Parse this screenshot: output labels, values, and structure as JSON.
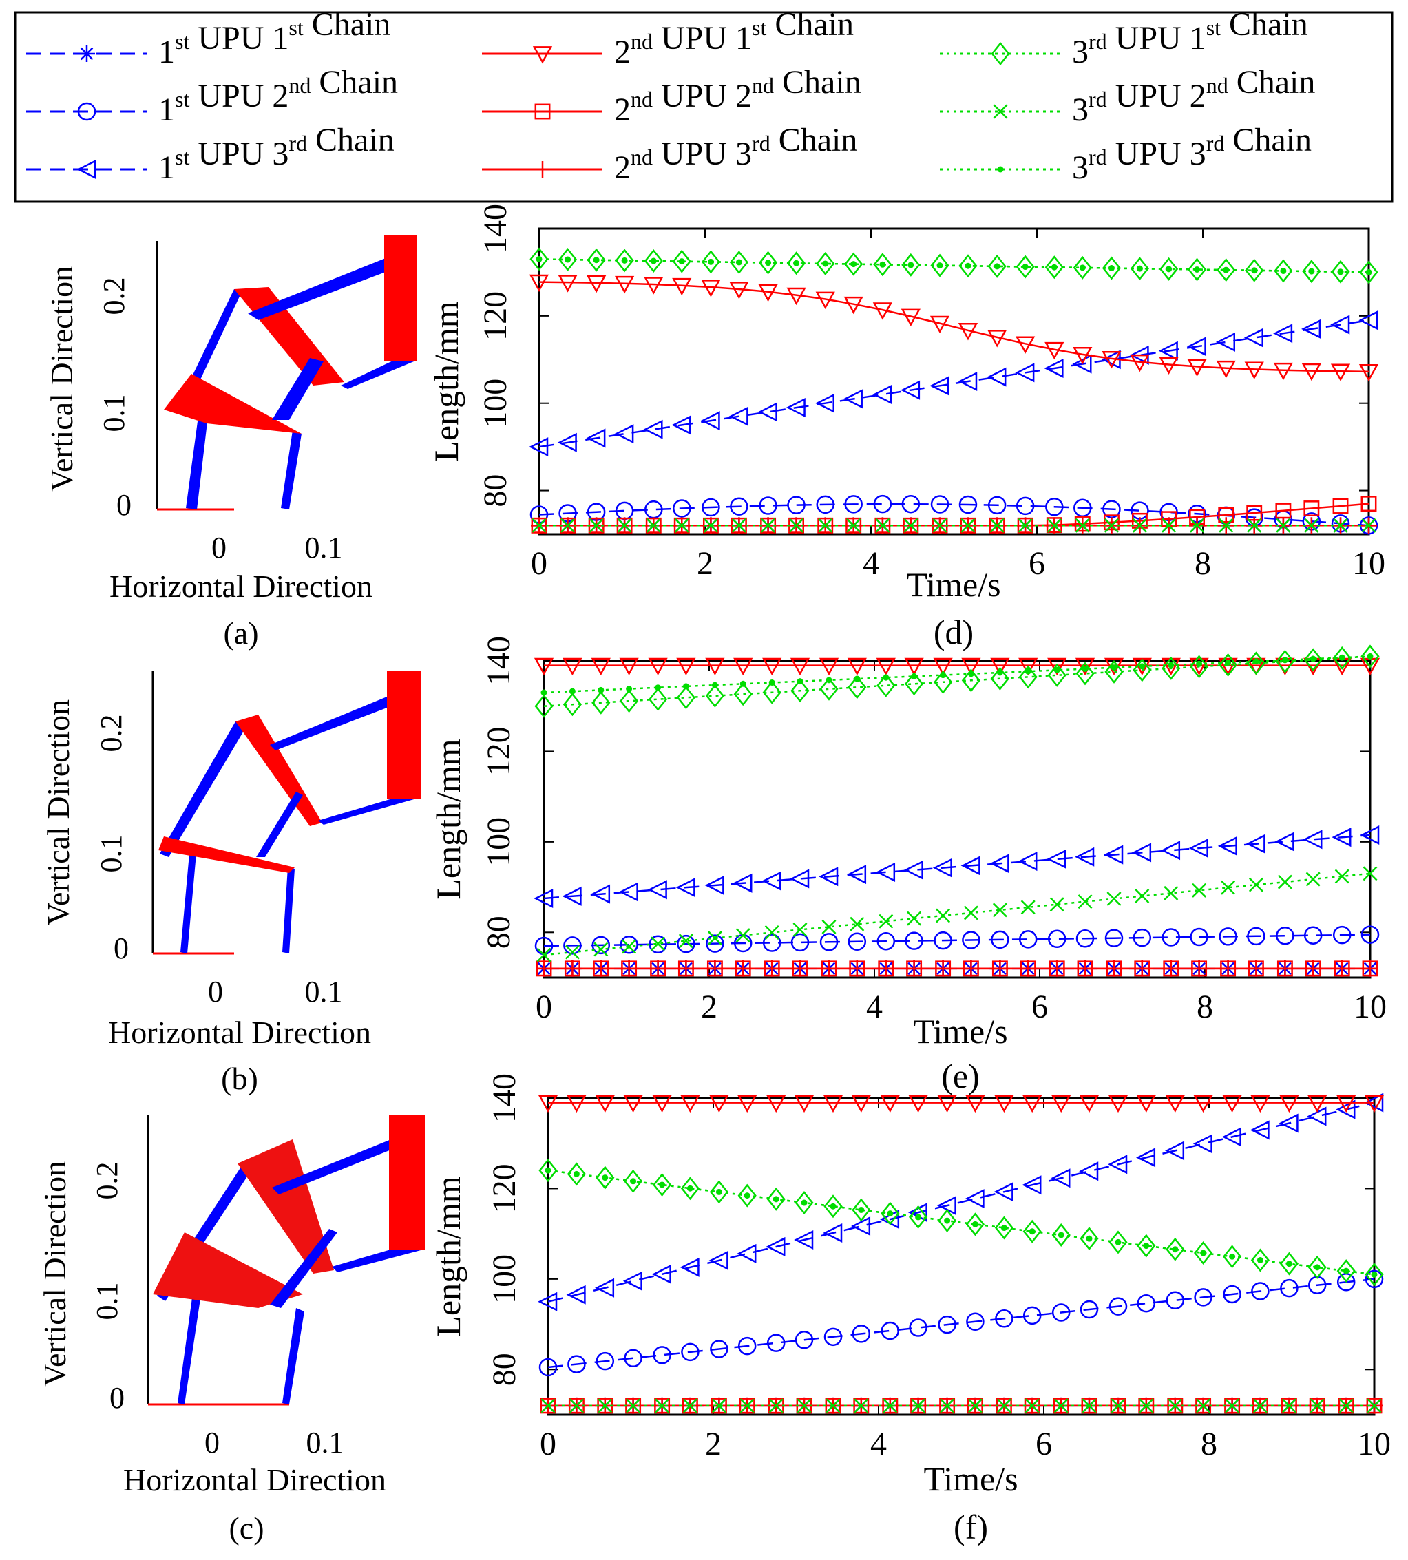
{
  "legend": {
    "entries": [
      {
        "ord1": "st",
        "mid": " UPU 1",
        "ord2": "st",
        "tail": " Chain",
        "lead": "1",
        "color": "#0000ff",
        "marker": "asterisk",
        "dash": "dashed"
      },
      {
        "ord1": "st",
        "mid": " UPU 2",
        "ord2": "nd",
        "tail": " Chain",
        "lead": "1",
        "color": "#0000ff",
        "marker": "circle",
        "dash": "dashed"
      },
      {
        "ord1": "st",
        "mid": " UPU 3",
        "ord2": "rd",
        "tail": " Chain",
        "lead": "1",
        "color": "#0000ff",
        "marker": "triangle-left",
        "dash": "dashed"
      },
      {
        "ord1": "nd",
        "mid": " UPU 1",
        "ord2": "st",
        "tail": " Chain",
        "lead": "2",
        "color": "#ff0000",
        "marker": "triangle-down",
        "dash": "solid"
      },
      {
        "ord1": "nd",
        "mid": " UPU 2",
        "ord2": "nd",
        "tail": " Chain",
        "lead": "2",
        "color": "#ff0000",
        "marker": "square",
        "dash": "solid"
      },
      {
        "ord1": "nd",
        "mid": " UPU 3",
        "ord2": "rd",
        "tail": " Chain",
        "lead": "2",
        "color": "#ff0000",
        "marker": "plus",
        "dash": "solid"
      },
      {
        "ord1": "rd",
        "mid": " UPU 1",
        "ord2": "st",
        "tail": " Chain",
        "lead": "3",
        "color": "#00dd00",
        "marker": "diamond",
        "dash": "dotted"
      },
      {
        "ord1": "rd",
        "mid": " UPU 2",
        "ord2": "nd",
        "tail": " Chain",
        "lead": "3",
        "color": "#00dd00",
        "marker": "x",
        "dash": "dotted"
      },
      {
        "ord1": "rd",
        "mid": " UPU 3",
        "ord2": "rd",
        "tail": " Chain",
        "lead": "3",
        "color": "#00dd00",
        "marker": "point",
        "dash": "dotted"
      }
    ]
  },
  "mechanism_panels": [
    {
      "label": "(a)",
      "xlabel": "Horizontal Direction",
      "ylabel": "Vertical Direction",
      "xticks": [
        "0",
        "0.1"
      ],
      "yticks": [
        "0",
        "0.1",
        "0.2"
      ]
    },
    {
      "label": "(b)",
      "xlabel": "Horizontal Direction",
      "ylabel": "Vertical Direction",
      "xticks": [
        "0",
        "0.1"
      ],
      "yticks": [
        "0",
        "0.1",
        "0.2"
      ]
    },
    {
      "label": "(c)",
      "xlabel": "Horizontal Direction",
      "ylabel": "Vertical Direction",
      "xticks": [
        "0",
        "0.1"
      ],
      "yticks": [
        "0",
        "0.1",
        "0.2"
      ]
    }
  ],
  "chart_data": [
    {
      "type": "line",
      "label": "(d)",
      "xlabel": "Time/s",
      "ylabel": "Length/mm",
      "xlim": [
        0,
        10
      ],
      "ylim": [
        70,
        140
      ],
      "xticks": [
        0,
        2,
        4,
        6,
        8,
        10
      ],
      "yticks": [
        80,
        100,
        120,
        140
      ],
      "x": [
        0,
        0.345,
        0.69,
        1.03,
        1.38,
        1.72,
        2.07,
        2.41,
        2.76,
        3.1,
        3.45,
        3.79,
        4.14,
        4.48,
        4.83,
        5.17,
        5.52,
        5.86,
        6.21,
        6.55,
        6.9,
        7.24,
        7.59,
        7.93,
        8.28,
        8.62,
        8.97,
        9.31,
        9.66,
        10
      ],
      "series": [
        {
          "name": "1st UPU 1st Chain",
          "start": 72,
          "end": 72,
          "shape": "const"
        },
        {
          "name": "1st UPU 2nd Chain",
          "start": 74.5,
          "end": 72,
          "shape": "hump",
          "peak": 76.5
        },
        {
          "name": "1st UPU 3rd Chain",
          "start": 90,
          "end": 119,
          "shape": "linear"
        },
        {
          "name": "2nd UPU 1st Chain",
          "start": 128,
          "end": 107,
          "shape": "sigmoid"
        },
        {
          "name": "2nd UPU 2nd Chain",
          "start": 72,
          "end": 77,
          "shape": "late-rise"
        },
        {
          "name": "2nd UPU 3rd Chain",
          "start": 72,
          "end": 72,
          "shape": "const"
        },
        {
          "name": "3rd UPU 1st Chain",
          "start": 133,
          "end": 130,
          "shape": "linear"
        },
        {
          "name": "3rd UPU 2nd Chain",
          "start": 72,
          "end": 72,
          "shape": "const"
        },
        {
          "name": "3rd UPU 3rd Chain",
          "start": 133,
          "end": 130,
          "shape": "linear"
        }
      ]
    },
    {
      "type": "line",
      "label": "(e)",
      "xlabel": "Time/s",
      "ylabel": "Length/mm",
      "xlim": [
        0,
        10
      ],
      "ylim": [
        70,
        140
      ],
      "xticks": [
        0,
        2,
        4,
        6,
        8,
        10
      ],
      "yticks": [
        80,
        100,
        120,
        140
      ],
      "x": [
        0,
        0.345,
        0.69,
        1.03,
        1.38,
        1.72,
        2.07,
        2.41,
        2.76,
        3.1,
        3.45,
        3.79,
        4.14,
        4.48,
        4.83,
        5.17,
        5.52,
        5.86,
        6.21,
        6.55,
        6.9,
        7.24,
        7.59,
        7.93,
        8.28,
        8.62,
        8.97,
        9.31,
        9.66,
        10
      ],
      "series": [
        {
          "name": "1st UPU 1st Chain",
          "start": 72,
          "end": 72,
          "shape": "const"
        },
        {
          "name": "1st UPU 2nd Chain",
          "start": 77,
          "end": 79.5,
          "shape": "linear"
        },
        {
          "name": "1st UPU 3rd Chain",
          "start": 87.5,
          "end": 101.5,
          "shape": "linear"
        },
        {
          "name": "2nd UPU 1st Chain",
          "start": 139,
          "end": 139,
          "shape": "const"
        },
        {
          "name": "2nd UPU 2nd Chain",
          "start": 72,
          "end": 72,
          "shape": "const"
        },
        {
          "name": "2nd UPU 3rd Chain",
          "start": 72,
          "end": 72,
          "shape": "const"
        },
        {
          "name": "3rd UPU 1st Chain",
          "start": 130,
          "end": 141,
          "shape": "linear"
        },
        {
          "name": "3rd UPU 2nd Chain",
          "start": 75,
          "end": 93,
          "shape": "linear"
        },
        {
          "name": "3rd UPU 3rd Chain",
          "start": 133,
          "end": 141,
          "shape": "linear"
        }
      ]
    },
    {
      "type": "line",
      "label": "(f)",
      "xlabel": "Time/s",
      "ylabel": "Length/mm",
      "xlim": [
        0,
        10
      ],
      "ylim": [
        70,
        140
      ],
      "xticks": [
        0,
        2,
        4,
        6,
        8,
        10
      ],
      "yticks": [
        80,
        100,
        120,
        140
      ],
      "x": [
        0,
        0.345,
        0.69,
        1.03,
        1.38,
        1.72,
        2.07,
        2.41,
        2.76,
        3.1,
        3.45,
        3.79,
        4.14,
        4.48,
        4.83,
        5.17,
        5.52,
        5.86,
        6.21,
        6.55,
        6.9,
        7.24,
        7.59,
        7.93,
        8.28,
        8.62,
        8.97,
        9.31,
        9.66,
        10
      ],
      "series": [
        {
          "name": "1st UPU 1st Chain",
          "start": 72,
          "end": 72,
          "shape": "const"
        },
        {
          "name": "1st UPU 2nd Chain",
          "start": 80.5,
          "end": 100,
          "shape": "linear"
        },
        {
          "name": "1st UPU 3rd Chain",
          "start": 95,
          "end": 139,
          "shape": "linear"
        },
        {
          "name": "2nd UPU 1st Chain",
          "start": 139,
          "end": 139,
          "shape": "const"
        },
        {
          "name": "2nd UPU 2nd Chain",
          "start": 72,
          "end": 72,
          "shape": "const"
        },
        {
          "name": "2nd UPU 3rd Chain",
          "start": 72,
          "end": 72,
          "shape": "const"
        },
        {
          "name": "3rd UPU 1st Chain",
          "start": 124,
          "end": 101,
          "shape": "linear"
        },
        {
          "name": "3rd UPU 2nd Chain",
          "start": 72,
          "end": 72.5,
          "shape": "const"
        },
        {
          "name": "3rd UPU 3rd Chain",
          "start": 124,
          "end": 101,
          "shape": "linear"
        }
      ]
    }
  ]
}
